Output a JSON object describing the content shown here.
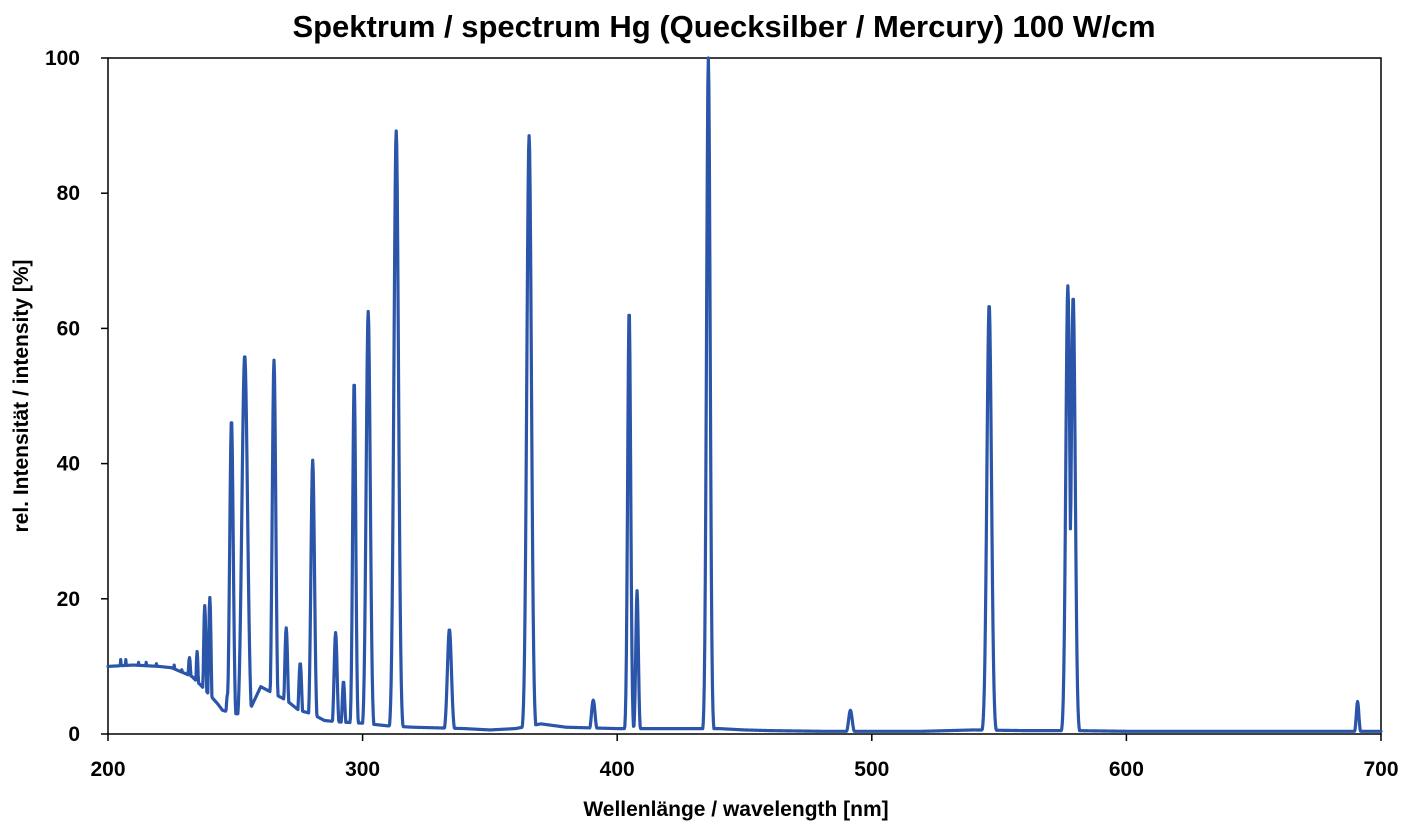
{
  "chart_data": {
    "type": "line",
    "title": "Spektrum / spectrum Hg (Quecksilber / Mercury) 100 W/cm",
    "xlabel": "Wellenlänge / wavelength [nm]",
    "ylabel": "rel. Intensität / intensity [%]",
    "xlim": [
      200,
      700
    ],
    "ylim": [
      0,
      100
    ],
    "xticks": [
      200,
      300,
      400,
      500,
      600,
      700
    ],
    "yticks": [
      0,
      20,
      40,
      60,
      80,
      100
    ],
    "grid": false,
    "legend": "none",
    "line_color": "#2a55a8",
    "series": [
      {
        "name": "Hg 100 W/cm",
        "baseline": [
          [
            200,
            10
          ],
          [
            210,
            10.2
          ],
          [
            220,
            10
          ],
          [
            225,
            9.8
          ],
          [
            230,
            9
          ],
          [
            233,
            8.5
          ],
          [
            237,
            7
          ],
          [
            243,
            4.5
          ],
          [
            245,
            3.5
          ],
          [
            250,
            3
          ],
          [
            255,
            3
          ],
          [
            260,
            7
          ],
          [
            265,
            6
          ],
          [
            270,
            5
          ],
          [
            275,
            3.5
          ],
          [
            280,
            3
          ],
          [
            285,
            2
          ],
          [
            290,
            1.8
          ],
          [
            300,
            1.6
          ],
          [
            310,
            1.2
          ],
          [
            320,
            1
          ],
          [
            330,
            0.9
          ],
          [
            340,
            0.8
          ],
          [
            350,
            0.6
          ],
          [
            360,
            0.8
          ],
          [
            370,
            1.5
          ],
          [
            380,
            1
          ],
          [
            390,
            0.9
          ],
          [
            400,
            0.8
          ],
          [
            420,
            0.8
          ],
          [
            440,
            0.8
          ],
          [
            450,
            0.6
          ],
          [
            460,
            0.5
          ],
          [
            480,
            0.4
          ],
          [
            500,
            0.4
          ],
          [
            520,
            0.4
          ],
          [
            540,
            0.6
          ],
          [
            560,
            0.5
          ],
          [
            580,
            0.5
          ],
          [
            600,
            0.4
          ],
          [
            620,
            0.4
          ],
          [
            650,
            0.4
          ],
          [
            680,
            0.4
          ],
          [
            700,
            0.4
          ]
        ],
        "peaks": [
          {
            "x": 205,
            "y": 11,
            "w": 0.5
          },
          {
            "x": 207,
            "y": 11,
            "w": 0.5
          },
          {
            "x": 212,
            "y": 10.6,
            "w": 0.5
          },
          {
            "x": 215,
            "y": 10.6,
            "w": 0.5
          },
          {
            "x": 219,
            "y": 10.4,
            "w": 0.5
          },
          {
            "x": 226,
            "y": 10.2,
            "w": 0.6
          },
          {
            "x": 229,
            "y": 9.5,
            "w": 0.6
          },
          {
            "x": 232,
            "y": 11.3,
            "w": 0.7
          },
          {
            "x": 235,
            "y": 12.2,
            "w": 0.5
          },
          {
            "x": 238,
            "y": 19,
            "w": 0.5
          },
          {
            "x": 240,
            "y": 20.2,
            "w": 0.5
          },
          {
            "x": 247,
            "y": 6,
            "w": 0.6
          },
          {
            "x": 248.5,
            "y": 46.5,
            "w": 0.7
          },
          {
            "x": 253.7,
            "y": 56,
            "w": 1.1
          },
          {
            "x": 265.2,
            "y": 55.3,
            "w": 0.7
          },
          {
            "x": 270,
            "y": 15.7,
            "w": 0.6
          },
          {
            "x": 275.5,
            "y": 10.5,
            "w": 0.6
          },
          {
            "x": 280.4,
            "y": 40.5,
            "w": 0.7
          },
          {
            "x": 289.4,
            "y": 15,
            "w": 0.6
          },
          {
            "x": 292.5,
            "y": 7.8,
            "w": 0.5
          },
          {
            "x": 296.7,
            "y": 52.3,
            "w": 0.6
          },
          {
            "x": 302.2,
            "y": 62.5,
            "w": 0.8
          },
          {
            "x": 313.2,
            "y": 89.2,
            "w": 0.9
          },
          {
            "x": 334.1,
            "y": 15.5,
            "w": 0.8
          },
          {
            "x": 365.4,
            "y": 88.5,
            "w": 0.9
          },
          {
            "x": 390.6,
            "y": 5,
            "w": 0.7
          },
          {
            "x": 404.7,
            "y": 62.8,
            "w": 0.6
          },
          {
            "x": 407.8,
            "y": 21.2,
            "w": 0.5
          },
          {
            "x": 435.8,
            "y": 100,
            "w": 0.7
          },
          {
            "x": 491.6,
            "y": 3.5,
            "w": 0.7
          },
          {
            "x": 546.1,
            "y": 63.6,
            "w": 0.9
          },
          {
            "x": 577,
            "y": 66.3,
            "w": 0.8
          },
          {
            "x": 579.1,
            "y": 64.8,
            "w": 0.8
          },
          {
            "x": 690.8,
            "y": 4.8,
            "w": 0.5
          }
        ]
      }
    ]
  }
}
